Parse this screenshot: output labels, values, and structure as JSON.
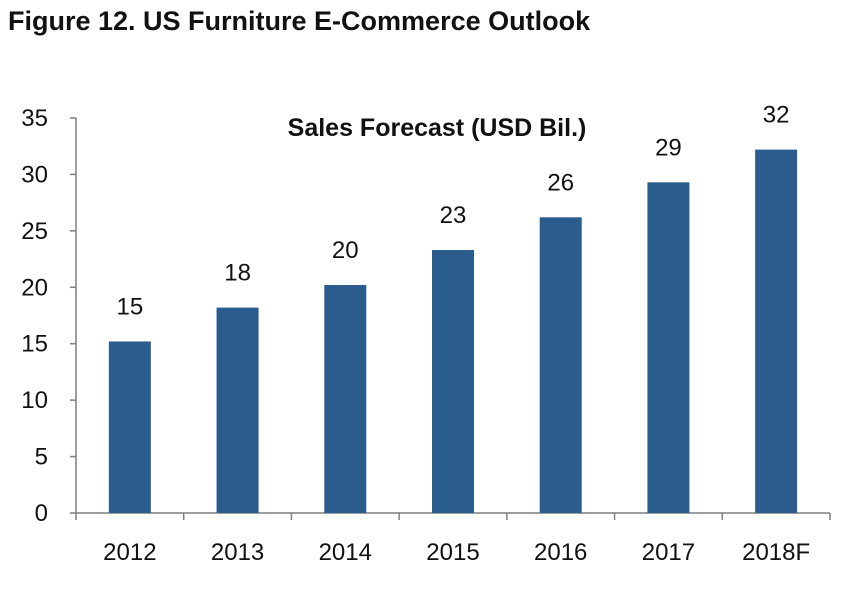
{
  "figure_title": "Figure 12. US Furniture E-Commerce Outlook",
  "colors": {
    "bar": "#2B5C8E",
    "axis": "#7f7f7f",
    "text": "#111111"
  },
  "chart_data": {
    "type": "bar",
    "title": "Sales Forecast (USD Bil.)",
    "xlabel": "",
    "ylabel": "",
    "categories": [
      "2012",
      "2013",
      "2014",
      "2015",
      "2016",
      "2017",
      "2018F"
    ],
    "values": [
      15.2,
      18.2,
      20.2,
      23.3,
      26.2,
      29.3,
      32.2
    ],
    "data_labels": [
      "15",
      "18",
      "20",
      "23",
      "26",
      "29",
      "32"
    ],
    "ylim": [
      0,
      35
    ],
    "yticks": [
      "0",
      "5",
      "10",
      "15",
      "20",
      "25",
      "30",
      "35"
    ],
    "grid": false,
    "legend": "none"
  }
}
